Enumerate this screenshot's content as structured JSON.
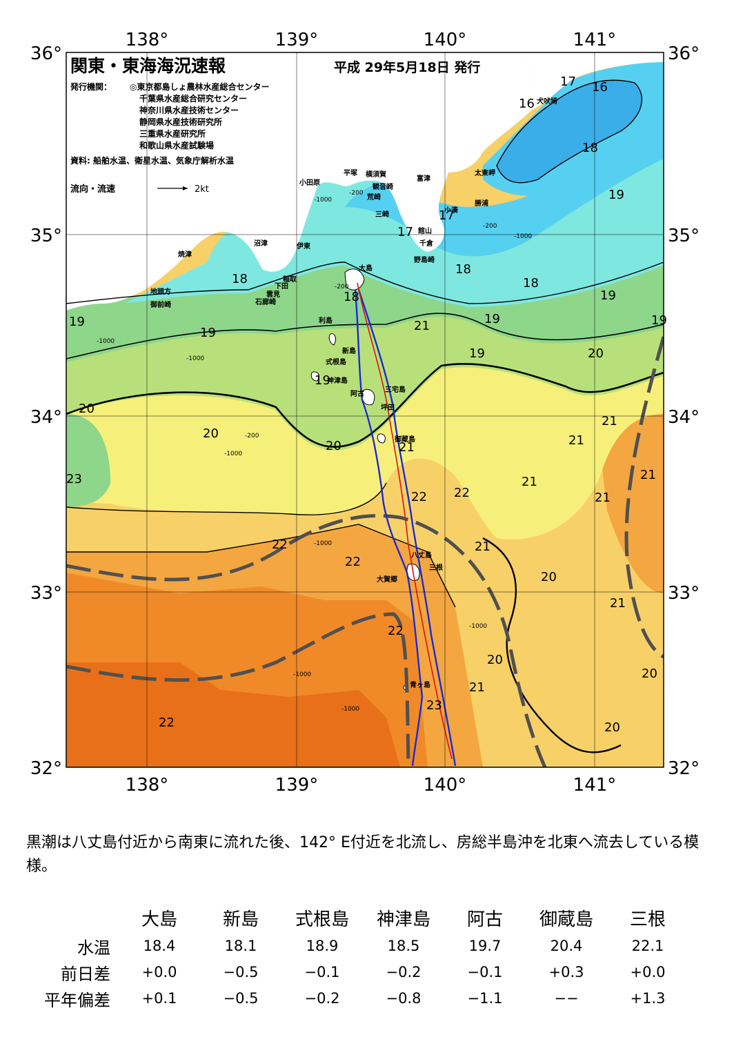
{
  "map": {
    "title": "関東・東海海況速報",
    "issue_date": "平成 29年5月18日 発行",
    "issuer_label": "発行機関：",
    "issuers": [
      "◎東京都島しょ農林水産総合センター",
      "千葉県水産総合研究センター",
      "神奈川県水産技術センター",
      "静岡県水産技術研究所",
      "三重県水産研究所",
      "和歌山県水産試験場"
    ],
    "source": "資料: 船舶水温、衛星水温、気象庁解析水温",
    "flow_legend": "流向・流速",
    "flow_scale": "2kt",
    "lon_labels": [
      "138°",
      "139°",
      "140°",
      "141°"
    ],
    "lat_labels": [
      "36°",
      "35°",
      "34°",
      "33°",
      "32°"
    ],
    "place_names": [
      "大島",
      "利島",
      "新島",
      "式根島",
      "神津島",
      "三宅島",
      "阿古",
      "坪田",
      "御蔵島",
      "八丈島",
      "三根",
      "大賀郷",
      "青ヶ島",
      "小田原",
      "平塚",
      "横須賀",
      "観音崎",
      "富津",
      "荒崎",
      "三崎",
      "館山",
      "千倉",
      "野島崎",
      "小湊",
      "勝浦",
      "太東岬",
      "犬吠埼",
      "沼津",
      "伊東",
      "焼津",
      "稲取",
      "下田",
      "雲見",
      "石廊崎",
      "地頭方",
      "御前崎"
    ],
    "isotherm_labels": [
      "16",
      "16",
      "17",
      "17",
      "17",
      "18",
      "18",
      "18",
      "18",
      "18",
      "19",
      "19",
      "19",
      "19",
      "19",
      "19",
      "19",
      "19",
      "20",
      "20",
      "20",
      "20",
      "20",
      "20",
      "20",
      "20",
      "21",
      "21",
      "21",
      "21",
      "21",
      "21",
      "21",
      "21",
      "21",
      "21",
      "22",
      "22",
      "22",
      "22",
      "22",
      "22",
      "23",
      "23"
    ],
    "depth_labels": [
      "-200",
      "-1000"
    ],
    "colors": {
      "t16": "#3aaee8",
      "t17": "#56d0f0",
      "t18": "#7ee8e0",
      "t19": "#8ed68a",
      "t20": "#b8e07a",
      "t21": "#f6f07a",
      "t22": "#f8d068",
      "t23": "#f4a640",
      "t24": "#f08a28",
      "t25": "#e87018",
      "land": "#ffffff",
      "route_blue": "#1a2ad8",
      "route_red": "#e01010",
      "kuroshio": "#505050"
    }
  },
  "summary": "黒潮は八丈島付近から南東に流れた後、142° E付近を北流し、房総半島沖を北東へ流去している模様。",
  "stats": {
    "stations": [
      "大島",
      "新島",
      "式根島",
      "神津島",
      "阿古",
      "御蔵島",
      "三根"
    ],
    "rows": [
      {
        "label": "水温",
        "values": [
          "18.4",
          "18.1",
          "18.9",
          "18.5",
          "19.7",
          "20.4",
          "22.1"
        ]
      },
      {
        "label": "前日差",
        "values": [
          "+0.0",
          "−0.5",
          "−0.1",
          "−0.2",
          "−0.1",
          "+0.3",
          "+0.0"
        ]
      },
      {
        "label": "平年偏差",
        "values": [
          "+0.1",
          "−0.5",
          "−0.2",
          "−0.8",
          "−1.1",
          "−−",
          "+1.3"
        ]
      }
    ]
  }
}
